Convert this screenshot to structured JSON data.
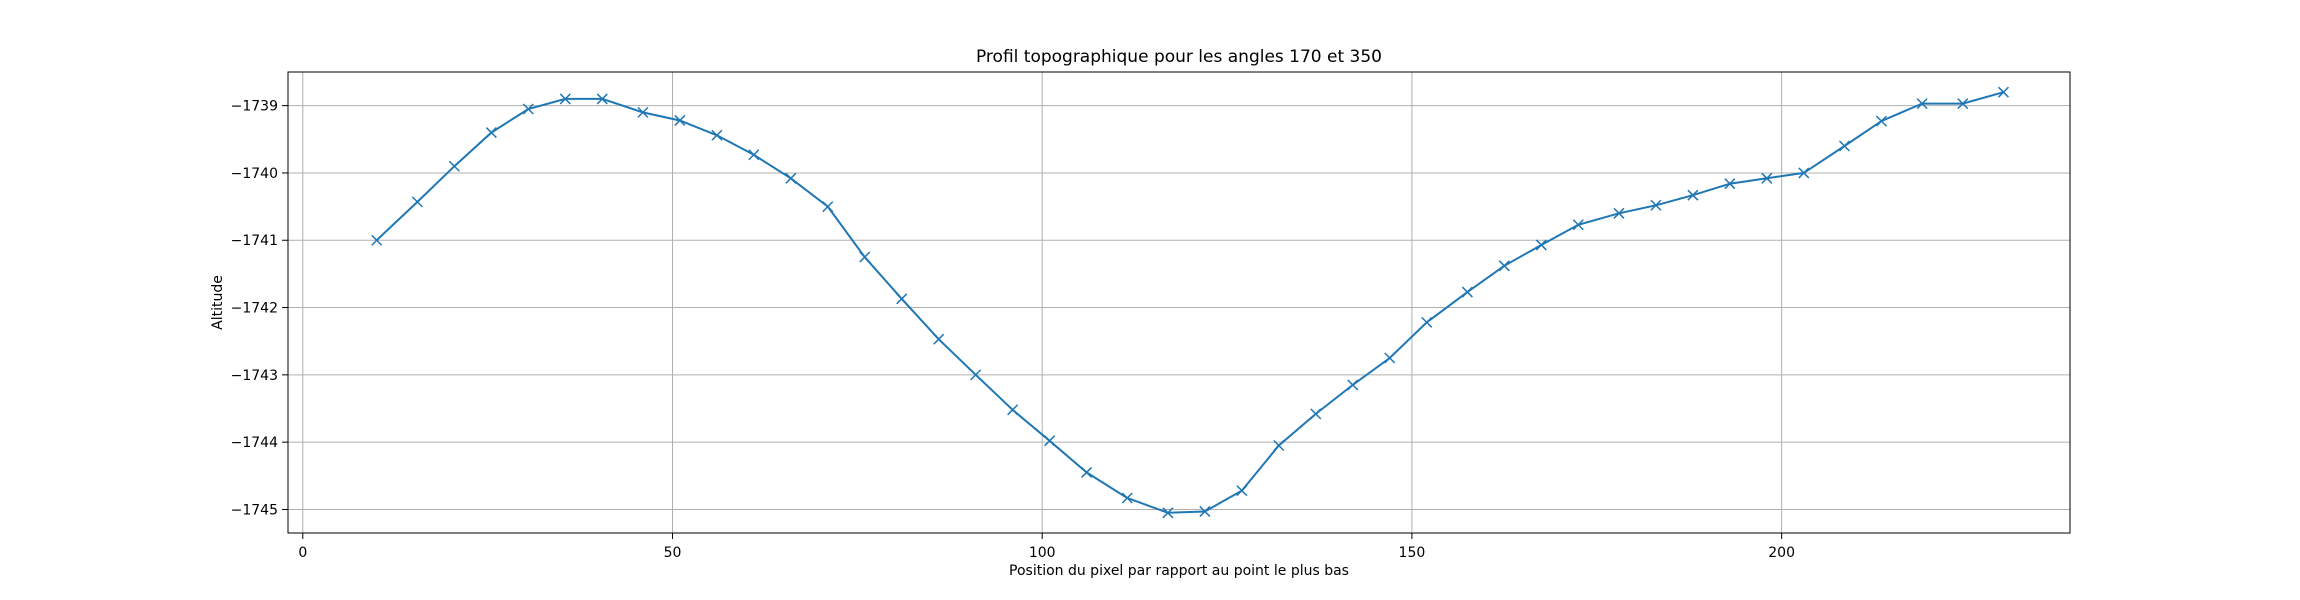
{
  "chart_data": {
    "type": "line",
    "title": "Profil topographique pour les angles 170 et 350",
    "xlabel": "Position du pixel par rapport au point le plus bas",
    "ylabel": "Altitude",
    "xlim": [
      -2,
      239
    ],
    "ylim": [
      -1745.35,
      -1738.5
    ],
    "xticks": [
      0,
      50,
      100,
      150,
      200
    ],
    "yticks": [
      -1745,
      -1744,
      -1743,
      -1742,
      -1741,
      -1740,
      -1739
    ],
    "grid": true,
    "series": [
      {
        "color": "#1f77b4",
        "marker": "x",
        "x": [
          10,
          15.5,
          20.5,
          25.5,
          30.5,
          35.5,
          40.5,
          46,
          51,
          56,
          61,
          66,
          71,
          76,
          81,
          86,
          91,
          96,
          101,
          106,
          111.5,
          117,
          122,
          127,
          132,
          137,
          142,
          147,
          152,
          157.5,
          162.5,
          167.5,
          172.5,
          178,
          183,
          188,
          193,
          198,
          203,
          208.5,
          213.5,
          219,
          224.5,
          230
        ],
        "y": [
          -1741.0,
          -1740.43,
          -1739.9,
          -1739.4,
          -1739.05,
          -1738.9,
          -1738.9,
          -1739.1,
          -1739.22,
          -1739.44,
          -1739.73,
          -1740.08,
          -1740.5,
          -1741.25,
          -1741.87,
          -1742.47,
          -1743.0,
          -1743.52,
          -1743.98,
          -1744.45,
          -1744.83,
          -1745.05,
          -1745.03,
          -1744.72,
          -1744.05,
          -1743.58,
          -1743.15,
          -1742.75,
          -1742.22,
          -1741.77,
          -1741.38,
          -1741.07,
          -1740.77,
          -1740.6,
          -1740.48,
          -1740.33,
          -1740.16,
          -1740.08,
          -1740.0,
          -1739.6,
          -1739.23,
          -1738.97,
          -1738.97,
          -1738.8
        ]
      }
    ]
  }
}
